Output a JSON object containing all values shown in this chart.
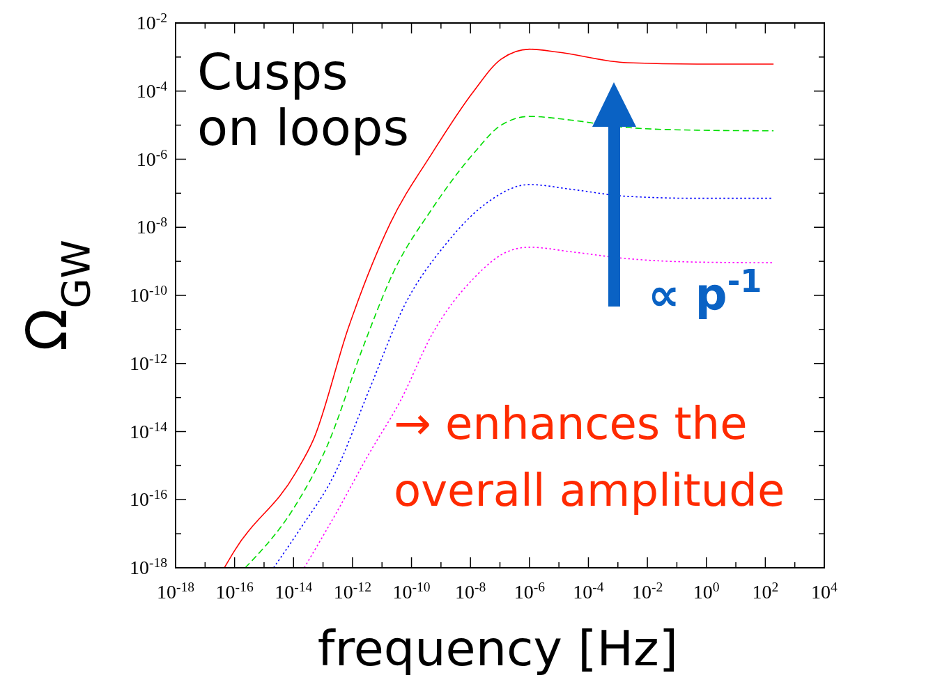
{
  "chart_data": {
    "type": "line",
    "xlabel": "frequency [Hz]",
    "ylabel": "Ω$_{GW}$",
    "log": "xy",
    "grid": false,
    "marker": "none",
    "xlim": [
      1e-18,
      10000
    ],
    "ylim": [
      1e-18,
      0.01
    ],
    "xticks": [
      {
        "value": 1e-18,
        "label": "10$^{-18}$"
      },
      {
        "value": 1e-17,
        "label": null
      },
      {
        "value": 1e-16,
        "label": "10$^{-16}$"
      },
      {
        "value": 1e-15,
        "label": null
      },
      {
        "value": 1e-14,
        "label": "10$^{-14}$"
      },
      {
        "value": 1e-13,
        "label": null
      },
      {
        "value": 1e-12,
        "label": "10$^{-12}$"
      },
      {
        "value": 1e-11,
        "label": null
      },
      {
        "value": 1e-10,
        "label": "10$^{-10}$"
      },
      {
        "value": 1e-09,
        "label": null
      },
      {
        "value": 1e-08,
        "label": "10$^{-8}$"
      },
      {
        "value": 1e-07,
        "label": null
      },
      {
        "value": 1e-06,
        "label": "10$^{-6}$"
      },
      {
        "value": 1e-05,
        "label": null
      },
      {
        "value": 0.0001,
        "label": "10$^{-4}$"
      },
      {
        "value": 0.001,
        "label": null
      },
      {
        "value": 0.01,
        "label": "10$^{-2}$"
      },
      {
        "value": 0.1,
        "label": null
      },
      {
        "value": 1,
        "label": "10$^{0}$"
      },
      {
        "value": 10,
        "label": null
      },
      {
        "value": 100,
        "label": "10$^{2}$"
      },
      {
        "value": 1000,
        "label": null
      },
      {
        "value": 10000,
        "label": "10$^{4}$"
      }
    ],
    "yticks": [
      {
        "value": 1e-18,
        "label": "10$^{-18}$"
      },
      {
        "value": 1e-17,
        "label": null
      },
      {
        "value": 1e-16,
        "label": "10$^{-16}$"
      },
      {
        "value": 1e-15,
        "label": null
      },
      {
        "value": 1e-14,
        "label": "10$^{-14}$"
      },
      {
        "value": 1e-13,
        "label": null
      },
      {
        "value": 1e-12,
        "label": "10$^{-12}$"
      },
      {
        "value": 1e-11,
        "label": null
      },
      {
        "value": 1e-10,
        "label": "10$^{-10}$"
      },
      {
        "value": 1e-09,
        "label": null
      },
      {
        "value": 1e-08,
        "label": "10$^{-8}$"
      },
      {
        "value": 1e-07,
        "label": null
      },
      {
        "value": 1e-06,
        "label": "10$^{-6}$"
      },
      {
        "value": 1e-05,
        "label": null
      },
      {
        "value": 0.0001,
        "label": "10$^{-4}$"
      },
      {
        "value": 0.001,
        "label": null
      },
      {
        "value": 0.01,
        "label": "10$^{-2}$"
      }
    ],
    "series": [
      {
        "color": "#ff0000",
        "line_style": "solid",
        "x": [
          4.5e-17,
          1e-16,
          1.2e-14,
          4.8e-14,
          7.2e-13,
          1.9e-11,
          5e-10,
          1.3e-08,
          1.1e-07,
          1e-06,
          8.9e-06,
          0.0021,
          0.48,
          190
        ],
        "values": [
          1e-18,
          3.2e-18,
          6.3e-16,
          6e-15,
          1.1e-11,
          1.3e-08,
          1.5e-06,
          0.0001,
          0.00087,
          0.0017,
          0.0014,
          0.00068,
          0.00062,
          0.00062
        ]
      },
      {
        "color": "#00dd00",
        "line_style": "dashed",
        "x": [
          2.3e-16,
          1.2e-14,
          1.4e-13,
          2.2e-12,
          2.5e-11,
          5e-10,
          1.3e-08,
          1.1e-07,
          1e-06,
          2.7e-05,
          0.0021,
          0.48,
          190
        ],
        "values": [
          1e-18,
          7.1e-17,
          3.9e-15,
          2.8e-12,
          5e-10,
          3.5e-08,
          1.5e-06,
          1e-05,
          1.8e-05,
          1.4e-05,
          8.5e-06,
          7.1e-06,
          6.8e-06
        ]
      },
      {
        "color": "#0000ff",
        "line_style": "dotted",
        "x": [
          2.1e-15,
          1.6e-14,
          2.5e-13,
          3.7e-12,
          5.6e-11,
          1.5e-09,
          3.9e-08,
          1e-06,
          2.7e-05,
          0.0021,
          0.48,
          190
        ],
        "values": [
          1e-18,
          1.3e-17,
          5.8e-16,
          1.7e-13,
          4.8e-11,
          3.3e-09,
          5.5e-08,
          1.8e-07,
          1.3e-07,
          8.1e-08,
          7.1e-08,
          7.1e-08
        ]
      },
      {
        "color": "#ff00ff",
        "line_style": "dotted",
        "x": [
          2.3e-14,
          2.5e-13,
          3.7e-12,
          4.3e-11,
          5e-10,
          1.3e-08,
          2e-07,
          1e-06,
          2.7e-05,
          0.0021,
          0.48,
          190
        ],
        "values": [
          1e-18,
          3.4e-17,
          2.3e-15,
          8.3e-14,
          7.2e-12,
          3.2e-10,
          2e-09,
          2.6e-09,
          1.9e-09,
          1.2e-09,
          9.5e-10,
          9.1e-10
        ]
      }
    ],
    "annotations": [
      "Cusps\non loops",
      "∝ p$^{-1}$",
      "→ enhances the\noverall amplitude"
    ]
  }
}
